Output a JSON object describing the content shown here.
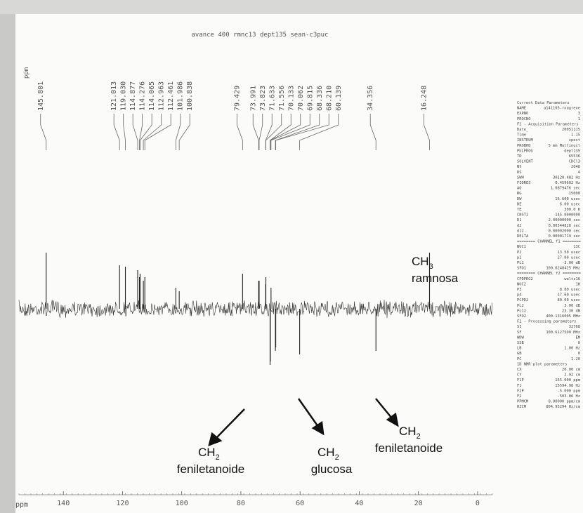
{
  "chart_data": {
    "type": "stem",
    "title": "avance 400 rmnc13 dept135 sean-c3puc",
    "x_axis_label": "ppm",
    "peak_axis_label": "ppm",
    "xlim": [
      155,
      -5
    ],
    "xticks": [
      140,
      120,
      100,
      80,
      60,
      40,
      20,
      0
    ],
    "x": [
      145.801,
      121.013,
      119.03,
      114.877,
      114.276,
      114.065,
      112.963,
      112.461,
      101.986,
      100.838,
      79.429,
      73.991,
      73.823,
      71.633,
      71.556,
      70.133,
      70.062,
      69.815,
      68.336,
      68.21,
      60.139,
      34.356,
      16.248
    ],
    "x_labels": [
      "145.801",
      "121.013",
      "119.030",
      "114.877",
      "114.276",
      "114.065",
      "112.963",
      "112.461",
      "101.986",
      "100.838",
      "79.429",
      "73.991",
      "73.823",
      "71.633",
      "71.556",
      "70.133",
      "70.062",
      "69.815",
      "68.336",
      "68.210",
      "60.139",
      "34.356",
      "16.248"
    ],
    "series": [
      {
        "color": "#222",
        "values": [
          80,
          62,
          60,
          55,
          45,
          50,
          40,
          45,
          30,
          25,
          50,
          40,
          40,
          35,
          45,
          -80,
          -75,
          30,
          -60,
          -55,
          -65,
          -60,
          80
        ]
      }
    ],
    "annotations": [
      {
        "text": "CH",
        "sub": "3",
        "label": "ramnosa"
      },
      {
        "text": "CH",
        "sub": "2",
        "label": "feniletanoide"
      },
      {
        "text": "CH",
        "sub": "2",
        "label": "glucosa"
      },
      {
        "text": "CH",
        "sub": "2",
        "label": "feniletanoide"
      }
    ]
  },
  "params": [
    "Current Data Parameters",
    [
      "NAME",
      "a141105-rnagrene"
    ],
    [
      "EXPNO",
      "3"
    ],
    [
      "PROCNO",
      "1"
    ],
    "F2 - Acquisition Parameters",
    [
      "Date_",
      "20051115"
    ],
    [
      "Time",
      "1.15"
    ],
    [
      "INSTRUM",
      "spect"
    ],
    [
      "PROBHD",
      "5 mm Multinucl"
    ],
    [
      "PULPROG",
      "dept135"
    ],
    [
      "TD",
      "65536"
    ],
    [
      "SOLVENT",
      "CDCl3"
    ],
    [
      "NS",
      "2048"
    ],
    [
      "DS",
      "4"
    ],
    [
      "SWH",
      "30120.482 Hz"
    ],
    [
      "FIDRES",
      "0.459602 Hz"
    ],
    [
      "AQ",
      "1.0879476 sec"
    ],
    [
      "RG",
      "15000"
    ],
    [
      "DW",
      "16.600 usec"
    ],
    [
      "DE",
      "6.00 usec"
    ],
    [
      "TE",
      "300.0 K"
    ],
    [
      "CNST2",
      "145.0000000"
    ],
    [
      "D1",
      "2.00000000 sec"
    ],
    [
      "d2",
      "0.00344828 sec"
    ],
    [
      "d12",
      "0.00002000 sec"
    ],
    [
      "DELTA",
      "0.00001719 sec"
    ],
    "======== CHANNEL f1 ========",
    [
      "NUC1",
      "13C"
    ],
    [
      "P1",
      "13.50 usec"
    ],
    [
      "p2",
      "27.00 usec"
    ],
    [
      "PL1",
      "-3.00 dB"
    ],
    [
      "SFO1",
      "100.6248425 MHz"
    ],
    "======== CHANNEL f2 ========",
    [
      "CPDPRG2",
      "waltz16"
    ],
    [
      "NUC2",
      "1H"
    ],
    [
      "P3",
      "8.80 usec"
    ],
    [
      "p4",
      "17.60 usec"
    ],
    [
      "PCPD2",
      "80.00 usec"
    ],
    [
      "PL2",
      "3.00 dB"
    ],
    [
      "PL12",
      "23.30 dB"
    ],
    [
      "SFO2",
      "400.1316005 MHz"
    ],
    "F2 - Processing parameters",
    [
      "SI",
      "32768"
    ],
    [
      "SF",
      "100.6127590 MHz"
    ],
    [
      "WDW",
      "EM"
    ],
    [
      "SSB",
      "0"
    ],
    [
      "LB",
      "1.00 Hz"
    ],
    [
      "GB",
      "0"
    ],
    [
      "PC",
      "1.20"
    ],
    "1D NMR plot parameters",
    [
      "CX",
      "20.00 cm"
    ],
    [
      "CY",
      "2.92 cm"
    ],
    [
      "F1P",
      "155.000 ppm"
    ],
    [
      "F1",
      "15594.98 Hz"
    ],
    [
      "F2P",
      "-5.000 ppm"
    ],
    [
      "F2",
      "-503.06 Hz"
    ],
    [
      "PPMCM",
      "8.00000 ppm/cm"
    ],
    [
      "HZCM",
      "804.95294 Hz/cm"
    ]
  ]
}
